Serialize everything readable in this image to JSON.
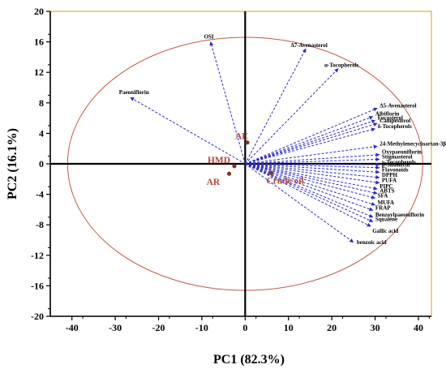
{
  "chart_data": {
    "type": "scatter",
    "subtype": "pca-biplot",
    "xlabel": "PC1 (82.3%)",
    "ylabel": "PC2 (16.1%)",
    "xlim": [
      -45,
      43
    ],
    "ylim": [
      -20,
      20
    ],
    "xticks": [
      -40,
      -30,
      -20,
      -10,
      0,
      10,
      20,
      30,
      40
    ],
    "yticks": [
      -20,
      -16,
      -12,
      -8,
      -4,
      0,
      4,
      8,
      12,
      16,
      20
    ],
    "grid": false,
    "colors": {
      "vector": "#2a2acc",
      "sample_point": "#7a3b1f",
      "sample_label": "#b04a3a",
      "ellipse": "#c05a4a",
      "frame": "#e0b040",
      "axis": "#000000"
    },
    "ellipse": {
      "center": [
        0,
        0
      ],
      "rx": 41,
      "ry": 16.6
    },
    "loadings": [
      {
        "label": "OSI",
        "x": -8,
        "y": 16
      },
      {
        "label": "Paeoniflorin",
        "x": -26.5,
        "y": 8.7
      },
      {
        "label": "Δ7-Avenasterol",
        "x": 14,
        "y": 15.1
      },
      {
        "label": "α-Tocopherols",
        "x": 21.5,
        "y": 12.5
      },
      {
        "label": "Δ5-Avenasterol",
        "x": 30.5,
        "y": 7.3
      },
      {
        "label": "Albiflorin",
        "x": 29.5,
        "y": 6.2
      },
      {
        "label": "Fucosterol",
        "x": 30,
        "y": 5.7
      },
      {
        "label": "Campesterol",
        "x": 30.5,
        "y": 5.3
      },
      {
        "label": "δ-Tocopherols",
        "x": 30,
        "y": 4.6
      },
      {
        "label": "24-Methylenecycloartan-3β-ol",
        "x": 30.5,
        "y": 2.3
      },
      {
        "label": "Oxypaeoniflorin",
        "x": 31,
        "y": 1.2
      },
      {
        "label": "Stigmasterol",
        "x": 31,
        "y": 0.6
      },
      {
        "label": "γ-Tocopherols",
        "x": 31,
        "y": -0.1
      },
      {
        "label": "β-Sitosterol",
        "x": 31,
        "y": -0.5
      },
      {
        "label": "Flavonoids",
        "x": 31,
        "y": -1.1
      },
      {
        "label": "DPPH",
        "x": 31,
        "y": -1.8
      },
      {
        "label": "PUFA",
        "x": 31,
        "y": -2.5
      },
      {
        "label": "PIPC",
        "x": 30.5,
        "y": -3.3
      },
      {
        "label": "ABTS",
        "x": 30.5,
        "y": -3.9
      },
      {
        "label": "SFA",
        "x": 30,
        "y": -4.5
      },
      {
        "label": "MUFA",
        "x": 30,
        "y": -5.4
      },
      {
        "label": "FRAP",
        "x": 29.5,
        "y": -6.1
      },
      {
        "label": "Benzoylpaeoniflorin",
        "x": 29.5,
        "y": -7
      },
      {
        "label": "Squalene",
        "x": 29.5,
        "y": -7.6
      },
      {
        "label": "Gallic acid",
        "x": 29,
        "y": -8.2
      },
      {
        "label": "benzoic acid",
        "x": 25,
        "y": -10.3
      }
    ],
    "samples": [
      {
        "label": "AE",
        "x": 0.5,
        "y": 2.8
      },
      {
        "label": "HMD",
        "x": -2.5,
        "y": -0.3
      },
      {
        "label": "AR",
        "x": -3.7,
        "y": -1.3
      },
      {
        "label": "Crude oil",
        "x": 6,
        "y": -1.2
      }
    ]
  }
}
